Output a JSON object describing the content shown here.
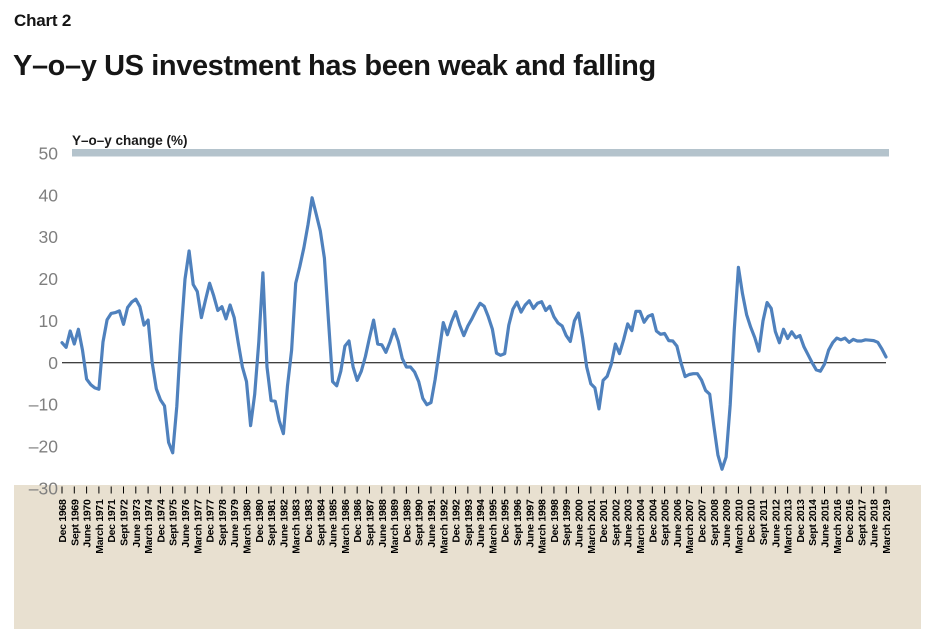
{
  "header": {
    "chart_label": "Chart 2",
    "title": "Y–o–y US investment has been weak and falling"
  },
  "chart_data": {
    "type": "line",
    "title": "Y–o–y US investment has been weak and falling",
    "series_label": "Y–o–y change (%)",
    "unit": "percent",
    "frequency": "quarterly",
    "x_start": "Dec 1968",
    "x_end": "March 2019",
    "ylim": [
      -30,
      50
    ],
    "y_ticks": [
      50,
      40,
      30,
      20,
      10,
      0,
      -10,
      -20,
      -30
    ],
    "grid": false,
    "zero_line": true,
    "legend_position": "none",
    "x_tick_labels": [
      "Dec 1968",
      "Sept 1969",
      "June 1970",
      "March 1971",
      "Dec 1971",
      "Sept 1972",
      "June 1973",
      "March 1974",
      "Dec 1974",
      "Sept 1975",
      "June 1976",
      "March 1977",
      "Dec 1977",
      "Sept 1978",
      "June 1979",
      "March 1980",
      "Dec 1980",
      "Sept 1981",
      "June 1982",
      "March 1983",
      "Dec 1983",
      "Sept 1984",
      "June 1985",
      "March 1986",
      "Dec 1986",
      "Sept 1987",
      "June 1988",
      "March 1989",
      "Dec 1989",
      "Sept 1990",
      "June 1991",
      "March 1992",
      "Dec 1992",
      "Sept 1993",
      "June 1994",
      "March 1995",
      "Dec 1995",
      "Sept 1996",
      "June 1997",
      "March 1998",
      "Dec 1998",
      "Sept 1999",
      "June 2000",
      "March 2001",
      "Dec 2001",
      "Sept 2002",
      "June 2003",
      "March 2004",
      "Dec 2004",
      "Sept 2005",
      "June 2006",
      "March 2007",
      "Dec 2007",
      "Sept 2008",
      "June 2009",
      "March 2010",
      "Dec 2010",
      "Sept 2011",
      "June 2012",
      "March 2013",
      "Dec 2013",
      "Sept 2014",
      "June 2015",
      "March 2016",
      "Dec 2016",
      "Sept 2017",
      "June 2018",
      "March 2019"
    ],
    "x_label_every_n_quarters": 3,
    "values": [
      4.8,
      3.7,
      7.6,
      4.5,
      8.0,
      3.0,
      -3.9,
      -5.2,
      -6.0,
      -6.3,
      5.0,
      10.3,
      11.8,
      12.0,
      12.4,
      9.2,
      13.2,
      14.5,
      15.2,
      13.4,
      9.0,
      10.2,
      0.0,
      -6.2,
      -8.8,
      -10.3,
      -19.0,
      -21.5,
      -10.4,
      6.5,
      20.0,
      26.7,
      18.7,
      17.0,
      10.8,
      15.0,
      19.0,
      16.0,
      12.5,
      13.4,
      10.5,
      13.8,
      10.8,
      4.7,
      -1.0,
      -4.5,
      -15.0,
      -7.5,
      5.0,
      21.5,
      -1.0,
      -9.0,
      -9.2,
      -13.9,
      -16.9,
      -5.5,
      3.0,
      19.0,
      23.0,
      27.5,
      33.0,
      39.4,
      35.5,
      31.5,
      25.0,
      10.0,
      -4.5,
      -5.5,
      -2.0,
      4.0,
      5.2,
      -1.0,
      -4.2,
      -2.0,
      1.5,
      6.0,
      10.2,
      4.5,
      4.3,
      2.5,
      5.0,
      8.0,
      5.2,
      1.0,
      -1.0,
      -1.0,
      -2.2,
      -4.5,
      -8.5,
      -10.0,
      -9.5,
      -4.0,
      2.8,
      9.6,
      6.7,
      9.8,
      12.2,
      9.0,
      6.5,
      8.8,
      10.5,
      12.5,
      14.2,
      13.5,
      11.0,
      8.0,
      2.3,
      1.8,
      2.2,
      9.0,
      12.8,
      14.5,
      12.1,
      13.8,
      14.8,
      13.0,
      14.2,
      14.6,
      12.5,
      13.5,
      11.0,
      9.5,
      8.8,
      6.5,
      5.1,
      10.0,
      11.9,
      6.0,
      -1.0,
      -5.0,
      -6.0,
      -11.0,
      -4.2,
      -3.2,
      -0.3,
      4.5,
      2.2,
      5.5,
      9.3,
      7.7,
      12.3,
      12.3,
      9.7,
      11.1,
      11.5,
      7.6,
      6.8,
      7.0,
      5.3,
      5.2,
      4.0,
      0.0,
      -3.3,
      -2.8,
      -2.6,
      -2.6,
      -4.1,
      -6.6,
      -7.5,
      -15.0,
      -22.0,
      -25.4,
      -22.5,
      -10.0,
      8.0,
      22.8,
      16.5,
      11.5,
      8.5,
      6.0,
      2.8,
      10.0,
      14.4,
      13.0,
      7.5,
      4.8,
      8.0,
      5.8,
      7.4,
      6.0,
      6.5,
      3.8,
      1.9,
      0.0,
      -1.7,
      -2.0,
      -0.3,
      3.0,
      4.8,
      5.9,
      5.5,
      5.9,
      4.9,
      5.6,
      5.2,
      5.2,
      5.5,
      5.4,
      5.3,
      4.9,
      3.3,
      1.4
    ],
    "colors": {
      "line": "#4f81bd",
      "top_bar": "#b4c3cc",
      "axis_band": "#e8e0d0",
      "zero_line": "#000000",
      "y_tick_text": "#7f7f7f",
      "x_tick_text": "#000000"
    }
  }
}
